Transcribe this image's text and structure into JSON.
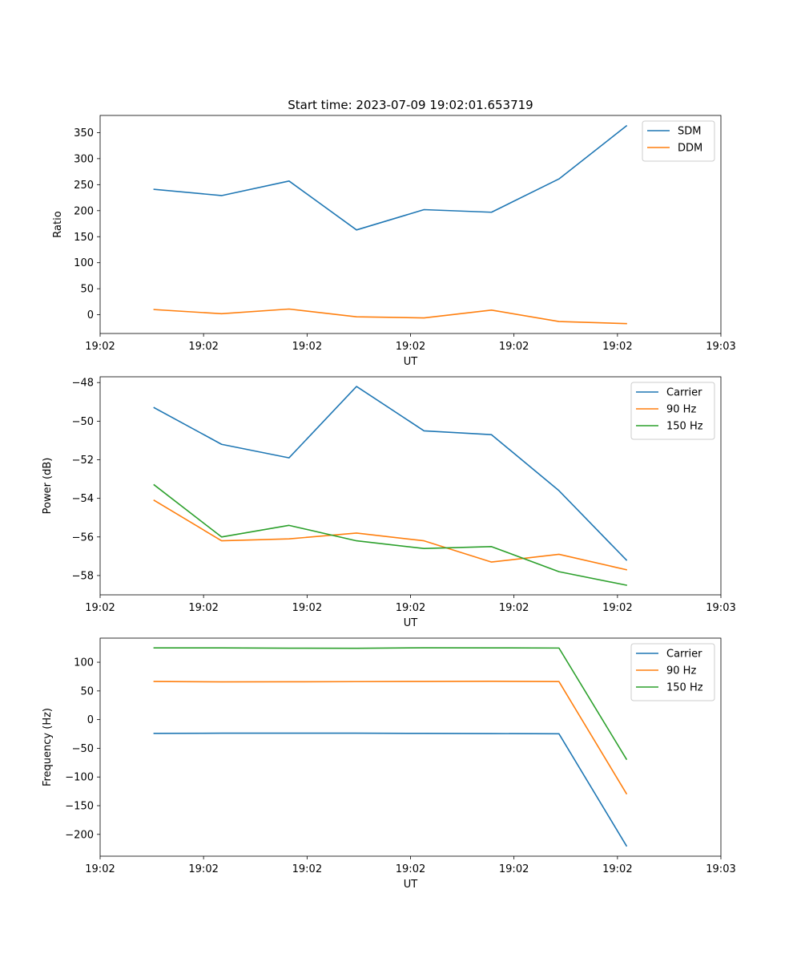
{
  "title": "Start time: 2023-07-09 19:02:01.653719",
  "colors": {
    "blue": "#1f77b4",
    "orange": "#ff7f0e",
    "green": "#2ca02c"
  },
  "chart_data": [
    {
      "type": "line",
      "title": "Start time: 2023-07-09 19:02:01.653719",
      "xlabel": "UT",
      "ylabel": "Ratio",
      "x": [
        1,
        2,
        3,
        4,
        5,
        6,
        7,
        8
      ],
      "xlim": [
        0.2,
        9.4
      ],
      "xticks": [
        0.2,
        1.733,
        3.267,
        4.8,
        6.333,
        7.867,
        9.4
      ],
      "xtick_labels": [
        "19:02",
        "19:02",
        "19:02",
        "19:02",
        "19:02",
        "19:02",
        "19:03"
      ],
      "ylim": [
        -36,
        383
      ],
      "yticks": [
        0,
        50,
        100,
        150,
        200,
        250,
        300,
        350
      ],
      "ytick_labels": [
        "0",
        "50",
        "100",
        "150",
        "200",
        "250",
        "300",
        "350"
      ],
      "legend": "top-right",
      "series": [
        {
          "name": "SDM",
          "color": "#1f77b4",
          "values": [
            241,
            229,
            257,
            163,
            202,
            197,
            261,
            363
          ]
        },
        {
          "name": "DDM",
          "color": "#ff7f0e",
          "values": [
            10,
            2,
            11,
            -4,
            -6,
            9,
            -13,
            -17
          ]
        }
      ]
    },
    {
      "type": "line",
      "xlabel": "UT",
      "ylabel": "Power (dB)",
      "x": [
        1,
        2,
        3,
        4,
        5,
        6,
        7,
        8
      ],
      "xlim": [
        0.2,
        9.4
      ],
      "xticks": [
        0.2,
        1.733,
        3.267,
        4.8,
        6.333,
        7.867,
        9.4
      ],
      "xtick_labels": [
        "19:02",
        "19:02",
        "19:02",
        "19:02",
        "19:02",
        "19:02",
        "19:03"
      ],
      "ylim": [
        -59.0,
        -47.7
      ],
      "yticks": [
        -58,
        -56,
        -54,
        -52,
        -50,
        -48
      ],
      "ytick_labels": [
        "−58",
        "−56",
        "−54",
        "−52",
        "−50",
        "−48"
      ],
      "legend": "top-right",
      "series": [
        {
          "name": "Carrier",
          "color": "#1f77b4",
          "values": [
            -49.3,
            -51.2,
            -51.9,
            -48.2,
            -50.5,
            -50.7,
            -53.6,
            -57.2
          ]
        },
        {
          "name": "90 Hz",
          "color": "#ff7f0e",
          "values": [
            -54.1,
            -56.2,
            -56.1,
            -55.8,
            -56.2,
            -57.3,
            -56.9,
            -57.7
          ]
        },
        {
          "name": "150 Hz",
          "color": "#2ca02c",
          "values": [
            -53.3,
            -56.0,
            -55.4,
            -56.2,
            -56.6,
            -56.5,
            -57.8,
            -58.5
          ]
        }
      ]
    },
    {
      "type": "line",
      "xlabel": "UT",
      "ylabel": "Frequency (Hz)",
      "x": [
        1,
        2,
        3,
        4,
        5,
        6,
        7,
        8
      ],
      "xlim": [
        0.2,
        9.4
      ],
      "xticks": [
        0.2,
        1.733,
        3.267,
        4.8,
        6.333,
        7.867,
        9.4
      ],
      "xtick_labels": [
        "19:02",
        "19:02",
        "19:02",
        "19:02",
        "19:02",
        "19:02",
        "19:03"
      ],
      "ylim": [
        -238,
        142
      ],
      "yticks": [
        -200,
        -150,
        -100,
        -50,
        0,
        50,
        100
      ],
      "ytick_labels": [
        "−200",
        "−150",
        "−100",
        "−50",
        "0",
        "50",
        "100"
      ],
      "legend": "top-right",
      "series": [
        {
          "name": "Carrier",
          "color": "#1f77b4",
          "values": [
            -24,
            -23.7,
            -23.7,
            -23.7,
            -24,
            -24.3,
            -24.7,
            -220
          ]
        },
        {
          "name": "90 Hz",
          "color": "#ff7f0e",
          "values": [
            66.5,
            65.7,
            65.9,
            66.2,
            66.5,
            66.8,
            66.3,
            -129
          ]
        },
        {
          "name": "150 Hz",
          "color": "#2ca02c",
          "values": [
            125,
            125,
            124.5,
            124.3,
            125.2,
            125,
            124.7,
            -69
          ]
        }
      ]
    }
  ]
}
